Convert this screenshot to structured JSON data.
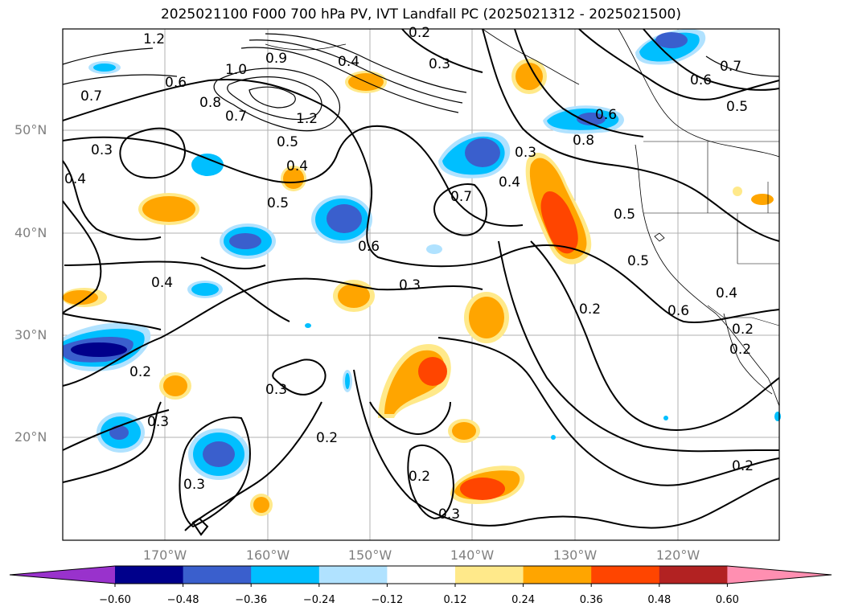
{
  "title": "2025021100 F000 700 hPa PV, IVT Landfall PC (2025021312 - 2025021500)",
  "lat_labels": [
    "50°N",
    "40°N",
    "30°N",
    "20°N"
  ],
  "lon_labels": [
    "170°W",
    "160°W",
    "150°W",
    "140°W",
    "130°W",
    "120°W"
  ],
  "colorbar": {
    "ticks": [
      "−0.60",
      "−0.48",
      "−0.36",
      "−0.24",
      "−0.12",
      "0.12",
      "0.24",
      "0.36",
      "0.48",
      "0.60"
    ],
    "colors": [
      "#9932cc",
      "#00008b",
      "#3a5fcd",
      "#00bfff",
      "#b0e2ff",
      "#ffffff",
      "#ffe98a",
      "#ffa500",
      "#ff4500",
      "#b22222",
      "#ff8fb1"
    ]
  },
  "contour_labels": [
    "1.2",
    "1.0",
    "0.9",
    "0.8",
    "0.7",
    "0.6",
    "0.5",
    "0.4",
    "0.3",
    "0.2",
    "1.2",
    "0.7",
    "0.4",
    "0.3",
    "0.5",
    "0.4",
    "0.6",
    "0.3",
    "0.2",
    "0.4",
    "0.5",
    "0.5",
    "0.6",
    "0.4",
    "0.3",
    "0.2",
    "0.3",
    "0.3",
    "0.2",
    "0.2",
    "0.3",
    "0.8",
    "0.7",
    "0.6",
    "0.5",
    "0.7",
    "0.4",
    "0.3",
    "0.2",
    "0.6",
    "0.2",
    "0.2"
  ]
}
